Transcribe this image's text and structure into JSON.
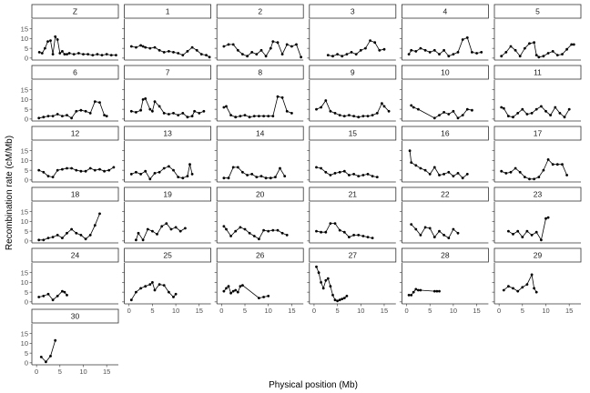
{
  "chart_data": {
    "type": "line",
    "xlabel": "Physical position (Mb)",
    "ylabel": "Recombination rate (cM/Mb)",
    "xlim": [
      -1,
      17.5
    ],
    "ylim": [
      -1,
      20
    ],
    "x_ticks": [
      0,
      5,
      10,
      15
    ],
    "y_ticks": [
      0,
      5,
      10,
      15
    ],
    "facet_columns": 6,
    "grid": false,
    "panels": [
      {
        "label": "Z",
        "x": [
          0.6,
          1.2,
          1.8,
          2.4,
          3,
          3.5,
          4,
          4.5,
          5,
          5.5,
          6,
          6.5,
          7,
          8,
          9,
          10,
          11,
          12,
          13,
          14,
          15,
          16,
          17
        ],
        "y": [
          3,
          2.5,
          5,
          8.5,
          9,
          2,
          11,
          9.5,
          2.5,
          3.5,
          2,
          2,
          2.5,
          2,
          2.5,
          2,
          2,
          1.5,
          2,
          1.5,
          2,
          1.5,
          1.5
        ]
      },
      {
        "label": "1",
        "x": [
          0.5,
          1.5,
          2.5,
          3,
          3.5,
          4.5,
          5.5,
          6.5,
          7.5,
          8.5,
          9.5,
          10.5,
          11.5,
          12.5,
          13.5,
          14.5,
          15.5,
          16.5,
          17.2
        ],
        "y": [
          6,
          5.5,
          6.5,
          6,
          5.5,
          5,
          5.5,
          4,
          3,
          3.5,
          3,
          2.5,
          1.5,
          3.5,
          5.5,
          4,
          2,
          1.5,
          0.5
        ]
      },
      {
        "label": "2",
        "x": [
          0.5,
          1.5,
          2.5,
          3.5,
          4.5,
          5.5,
          6.5,
          7.5,
          8.5,
          9.5,
          10.5,
          11,
          12,
          13,
          14,
          15,
          16,
          17
        ],
        "y": [
          6,
          7,
          7,
          4,
          2,
          1,
          3,
          2,
          4,
          1,
          5,
          8.5,
          8,
          2,
          7,
          6,
          7,
          0.5
        ]
      },
      {
        "label": "3",
        "x": [
          3,
          4,
          5,
          6,
          7,
          8,
          9,
          10,
          11,
          12,
          13,
          14,
          15
        ],
        "y": [
          1.5,
          1,
          2,
          1,
          2,
          3,
          2,
          4,
          5,
          9,
          8,
          4,
          4.5
        ]
      },
      {
        "label": "4",
        "x": [
          0.5,
          1,
          2,
          3,
          4,
          5,
          6,
          7,
          8,
          9,
          10,
          11,
          12,
          13,
          14,
          15,
          16
        ],
        "y": [
          2,
          4,
          3.5,
          5,
          4,
          3,
          4,
          2,
          4,
          1,
          2,
          3,
          9.5,
          10.5,
          3,
          2.5,
          3
        ]
      },
      {
        "label": "5",
        "x": [
          0.5,
          1.5,
          2.5,
          3.5,
          4.5,
          5.5,
          6.5,
          7.5,
          8,
          8.5,
          9.5,
          10.5,
          11.5,
          12.5,
          13.5,
          14.5,
          15.5,
          16
        ],
        "y": [
          1,
          3,
          6,
          4,
          1,
          5,
          7.5,
          8,
          1.5,
          0.5,
          1,
          2.5,
          3.5,
          1.5,
          2,
          4.5,
          7,
          7
        ]
      }
    ],
    "panels_row2": [
      {
        "label": "6",
        "x": [
          0.5,
          1.5,
          2.5,
          3.5,
          4.5,
          5.5,
          6.5,
          7.5,
          8.5,
          9.5,
          10.5,
          11.5,
          12.5,
          13.5,
          14.5,
          15
        ],
        "y": [
          0.5,
          1,
          1.5,
          1.5,
          2.5,
          1.5,
          2,
          0.5,
          4,
          4.5,
          4,
          3,
          9,
          8.5,
          2,
          1.5
        ]
      },
      {
        "label": "7",
        "x": [
          0.5,
          1.5,
          2.5,
          3,
          3.5,
          4.5,
          5,
          5.5,
          6.5,
          7.5,
          8.5,
          9.5,
          10.5,
          11.5,
          12.5,
          13.5,
          14,
          15,
          16
        ],
        "y": [
          4,
          3.5,
          4.5,
          10,
          10.5,
          5,
          4,
          9,
          6.5,
          3,
          2.5,
          3,
          2,
          3,
          1,
          1.5,
          4,
          3,
          4
        ]
      },
      {
        "label": "8",
        "x": [
          0.5,
          1,
          2,
          3,
          4,
          5,
          6,
          7,
          8,
          9,
          10,
          11,
          12,
          13,
          14,
          15
        ],
        "y": [
          6,
          6.5,
          2,
          1,
          1.5,
          2,
          1,
          1.5,
          1.5,
          1.5,
          1.5,
          1.5,
          11.5,
          11,
          4,
          3
        ]
      },
      {
        "label": "9",
        "x": [
          0.5,
          1.5,
          2.5,
          3.5,
          4.5,
          5.5,
          6.5,
          7.5,
          8.5,
          9.5,
          10.5,
          11.5,
          12.5,
          13.5,
          14.5,
          15,
          16
        ],
        "y": [
          5,
          6,
          9.5,
          4,
          3,
          2,
          1.5,
          2,
          1.5,
          1,
          1.5,
          1.5,
          2,
          3,
          8,
          6.5,
          4
        ]
      },
      {
        "label": "10",
        "x": [
          1,
          1.5,
          2.5,
          6,
          7,
          8,
          9,
          10,
          11,
          12,
          13,
          14
        ],
        "y": [
          7,
          6,
          5,
          0.5,
          2,
          3.5,
          2.5,
          4,
          0.5,
          2,
          5,
          4.5
        ]
      },
      {
        "label": "11",
        "x": [
          0.5,
          1,
          2,
          3,
          4,
          5,
          6,
          7,
          8,
          9,
          10,
          11,
          12,
          13,
          14,
          15
        ],
        "y": [
          6,
          5.5,
          1.5,
          1,
          3,
          5,
          2.5,
          3,
          5,
          6.5,
          4,
          2,
          6,
          3,
          1,
          5
        ]
      }
    ],
    "panels_row3": [
      {
        "label": "12",
        "x": [
          0.5,
          1.5,
          2.5,
          3.5,
          4.5,
          5.5,
          6.5,
          7.5,
          8.5,
          9.5,
          10.5,
          11.5,
          12.5,
          13.5,
          14.5,
          15.5,
          16.5
        ],
        "y": [
          5,
          4,
          2,
          1.5,
          5,
          5.5,
          6,
          6,
          5,
          4.5,
          4.5,
          6,
          5,
          5.5,
          4.5,
          5,
          6.5
        ]
      },
      {
        "label": "13",
        "x": [
          0.5,
          1.5,
          2.5,
          3.5,
          4.5,
          5.5,
          6.5,
          7.5,
          8.5,
          9.5,
          10.5,
          11.5,
          12.5,
          13,
          13.5
        ],
        "y": [
          3,
          4,
          3,
          4.5,
          0.5,
          3.5,
          4,
          6,
          7,
          5,
          1.5,
          1,
          2,
          8,
          3
        ]
      },
      {
        "label": "14",
        "x": [
          0.5,
          1.5,
          2.5,
          3.5,
          4.5,
          5.5,
          6.5,
          7.5,
          8.5,
          9.5,
          10.5,
          11.5,
          12.5,
          13.5
        ],
        "y": [
          1,
          1,
          6.5,
          6.5,
          4,
          2.5,
          3,
          1.5,
          2,
          1,
          1,
          1.5,
          6,
          2
        ]
      },
      {
        "label": "15",
        "x": [
          0.5,
          1.5,
          2.5,
          3.5,
          4.5,
          5.5,
          6.5,
          7.5,
          8.5,
          9.5,
          10.5,
          11.5,
          12.5,
          13.5
        ],
        "y": [
          6.5,
          6,
          4,
          2.5,
          3.5,
          4,
          4.5,
          2.5,
          3,
          2,
          2.5,
          3,
          2,
          1.5
        ]
      },
      {
        "label": "16",
        "x": [
          0.7,
          1,
          2,
          3,
          4,
          5,
          6,
          7,
          8,
          9,
          10,
          11,
          12,
          13
        ],
        "y": [
          15,
          9,
          7.5,
          6,
          5,
          3,
          6.5,
          2.5,
          3,
          4,
          2,
          3.5,
          1,
          3
        ]
      },
      {
        "label": "17",
        "x": [
          0.5,
          1.5,
          2.5,
          3.5,
          4.5,
          5.5,
          6.5,
          7.5,
          8.5,
          9.5,
          10.5,
          11.5,
          12.5,
          13.5,
          14.5
        ],
        "y": [
          4.5,
          3.5,
          4,
          6,
          4,
          1.5,
          0.5,
          0.5,
          1.5,
          5,
          10.5,
          8,
          8,
          8,
          2.5
        ]
      }
    ],
    "panels_row4": [
      {
        "label": "18",
        "x": [
          0.5,
          1.5,
          2.5,
          3.5,
          4.5,
          5.5,
          6.5,
          7.5,
          8.5,
          9.5,
          10.5,
          11.5,
          12.5,
          13.5
        ],
        "y": [
          0.5,
          0.5,
          1.5,
          2,
          3,
          1.5,
          4,
          6,
          4,
          3,
          1,
          3,
          8,
          14
        ]
      },
      {
        "label": "19",
        "x": [
          1.5,
          2,
          3,
          4,
          5,
          6,
          7,
          8,
          9,
          10,
          11,
          12
        ],
        "y": [
          0.5,
          4,
          0.5,
          6,
          5,
          3.5,
          7.5,
          9,
          6,
          7,
          5,
          6.5
        ]
      },
      {
        "label": "20",
        "x": [
          0.5,
          1,
          2,
          3,
          4,
          5,
          6,
          7,
          8,
          9,
          10,
          11,
          12,
          13,
          14
        ],
        "y": [
          7.5,
          6,
          2.5,
          5,
          7,
          6,
          4,
          2.5,
          1,
          5.5,
          5,
          5.5,
          5.5,
          4,
          3
        ]
      },
      {
        "label": "21",
        "x": [
          0.5,
          1.5,
          2.5,
          3.5,
          4.5,
          5.5,
          6.5,
          7.5,
          8.5,
          9.5,
          10.5,
          11.5,
          12.5
        ],
        "y": [
          5,
          4.5,
          4.5,
          9,
          9,
          5.5,
          4.5,
          2,
          3,
          3,
          2.5,
          2,
          1.5
        ]
      },
      {
        "label": "22",
        "x": [
          1,
          2,
          3,
          4,
          5,
          6,
          7,
          8,
          9,
          10,
          11
        ],
        "y": [
          8.5,
          6,
          3,
          7,
          6.5,
          2,
          5,
          3,
          1.5,
          6,
          4
        ]
      },
      {
        "label": "23",
        "x": [
          2,
          3,
          4,
          5,
          6,
          7,
          8,
          9,
          10,
          10.5
        ],
        "y": [
          5,
          3.5,
          5,
          2,
          5,
          3,
          4.5,
          0.5,
          11.5,
          12
        ]
      }
    ],
    "panels_row5": [
      {
        "label": "24",
        "x": [
          0.5,
          1.5,
          2.5,
          3.5,
          4.5,
          5.5,
          6,
          6.5
        ],
        "y": [
          2.5,
          3,
          4,
          1,
          3,
          5.5,
          5,
          3.5
        ]
      },
      {
        "label": "25",
        "x": [
          0.5,
          1.5,
          2.5,
          3.5,
          4.5,
          5,
          5.5,
          6.5,
          7.5,
          8.5,
          9.5,
          10
        ],
        "y": [
          1,
          5,
          7,
          8,
          9,
          10,
          6,
          9,
          8.5,
          5,
          2.5,
          4
        ]
      },
      {
        "label": "26",
        "x": [
          0.5,
          1,
          1.5,
          2,
          2.5,
          3,
          3.5,
          4,
          4.5,
          8,
          9,
          10
        ],
        "y": [
          5.5,
          7,
          8,
          4.5,
          5.5,
          6,
          5,
          8,
          8.5,
          2,
          2.5,
          3
        ]
      },
      {
        "label": "27",
        "x": [
          0.5,
          1,
          1.5,
          2,
          2.5,
          3,
          3.5,
          4,
          4.5,
          5,
          5.5,
          6,
          6.5,
          7
        ],
        "y": [
          18,
          15,
          10,
          7,
          11,
          12,
          8,
          3.5,
          1,
          0.5,
          1,
          1.5,
          2,
          3
        ]
      },
      {
        "label": "28",
        "x": [
          0.5,
          1,
          1.5,
          2,
          2.5,
          3,
          6,
          6.5,
          7
        ],
        "y": [
          3.5,
          3.5,
          5,
          6.5,
          6,
          6,
          5.5,
          5.5,
          5.5
        ]
      },
      {
        "label": "29",
        "x": [
          1,
          2,
          3,
          4,
          5,
          6,
          7,
          7.5,
          8
        ],
        "y": [
          6,
          8,
          7,
          5.5,
          7.5,
          9,
          14,
          7,
          5
        ]
      }
    ],
    "panels_row6": [
      {
        "label": "30",
        "x": [
          1,
          2,
          3,
          4
        ],
        "y": [
          3,
          0.5,
          3.5,
          11.5
        ]
      }
    ]
  }
}
